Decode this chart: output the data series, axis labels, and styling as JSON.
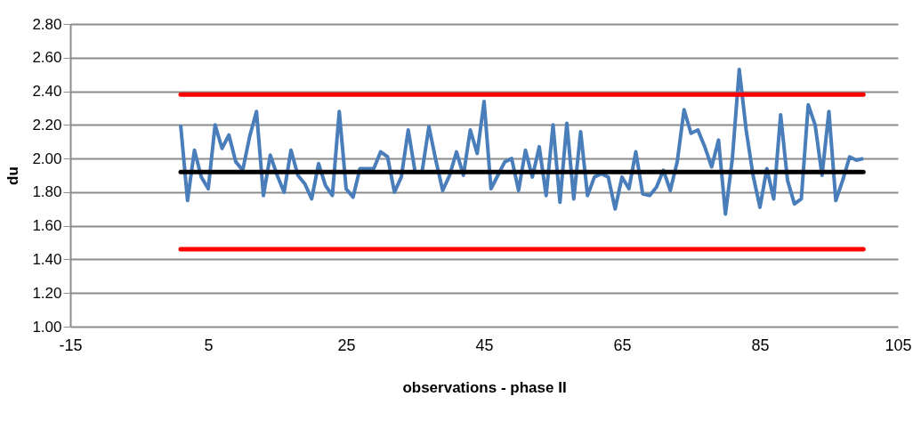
{
  "chart_data": {
    "type": "line",
    "xlabel": "observations - phase II",
    "ylabel": "du",
    "x": [
      1,
      2,
      3,
      4,
      5,
      6,
      7,
      8,
      9,
      10,
      11,
      12,
      13,
      14,
      15,
      16,
      17,
      18,
      19,
      20,
      21,
      22,
      23,
      24,
      25,
      26,
      27,
      28,
      29,
      30,
      31,
      32,
      33,
      34,
      35,
      36,
      37,
      38,
      39,
      40,
      41,
      42,
      43,
      44,
      45,
      46,
      47,
      48,
      49,
      50,
      51,
      52,
      53,
      54,
      55,
      56,
      57,
      58,
      59,
      60,
      61,
      62,
      63,
      64,
      65,
      66,
      67,
      68,
      69,
      70,
      71,
      72,
      73,
      74,
      75,
      76,
      77,
      78,
      79,
      80,
      81,
      82,
      83,
      84,
      85,
      86,
      87,
      88,
      89,
      90,
      91,
      92,
      93,
      94,
      95,
      96,
      97,
      98,
      99,
      100
    ],
    "series": [
      {
        "color": "#4a7ebb",
        "values": [
          2.2,
          1.75,
          2.05,
          1.89,
          1.82,
          2.2,
          2.06,
          2.14,
          1.98,
          1.93,
          2.13,
          2.28,
          1.78,
          2.02,
          1.9,
          1.8,
          2.05,
          1.9,
          1.85,
          1.76,
          1.97,
          1.84,
          1.78,
          2.28,
          1.82,
          1.77,
          1.94,
          1.94,
          1.94,
          2.04,
          2.01,
          1.8,
          1.89,
          2.17,
          1.92,
          1.92,
          2.19,
          1.99,
          1.81,
          1.9,
          2.04,
          1.9,
          2.17,
          2.03,
          2.34,
          1.82,
          1.9,
          1.98,
          2.0,
          1.81,
          2.05,
          1.89,
          2.07,
          1.78,
          2.2,
          1.74,
          2.21,
          1.76,
          2.16,
          1.78,
          1.89,
          1.91,
          1.89,
          1.7,
          1.89,
          1.82,
          2.04,
          1.79,
          1.78,
          1.83,
          1.93,
          1.81,
          1.98,
          2.29,
          2.15,
          2.17,
          2.07,
          1.95,
          2.11,
          1.67,
          2.0,
          2.53,
          2.17,
          1.9,
          1.71,
          1.94,
          1.76,
          2.26,
          1.87,
          1.73,
          1.76,
          2.32,
          2.2,
          1.9,
          2.28,
          1.75,
          1.87,
          2.01,
          1.99,
          2.0
        ]
      }
    ],
    "ref_lines": [
      {
        "axis": "y",
        "value": 2.38,
        "color": "#ff0000"
      },
      {
        "axis": "y",
        "value": 1.92,
        "color": "#000000"
      },
      {
        "axis": "y",
        "value": 1.46,
        "color": "#ff0000"
      }
    ],
    "xlim": [
      -15,
      105
    ],
    "xticks": [
      -15,
      5,
      25,
      45,
      65,
      85,
      105
    ],
    "ylim": [
      1,
      2.8
    ],
    "yticks": [
      {
        "value": 1,
        "label": "1.00"
      },
      {
        "value": 1.2,
        "label": "1.20"
      },
      {
        "value": 1.4,
        "label": "1.40"
      },
      {
        "value": 1.6,
        "label": "1.60"
      },
      {
        "value": 1.8,
        "label": "1.80"
      },
      {
        "value": 2,
        "label": "2.00"
      },
      {
        "value": 2.2,
        "label": "2.20"
      },
      {
        "value": 2.4,
        "label": "2.40"
      },
      {
        "value": 2.6,
        "label": "2.60"
      },
      {
        "value": 2.8,
        "label": "2.80"
      }
    ],
    "grid": "y",
    "marker": "none",
    "line_style": "solid"
  }
}
